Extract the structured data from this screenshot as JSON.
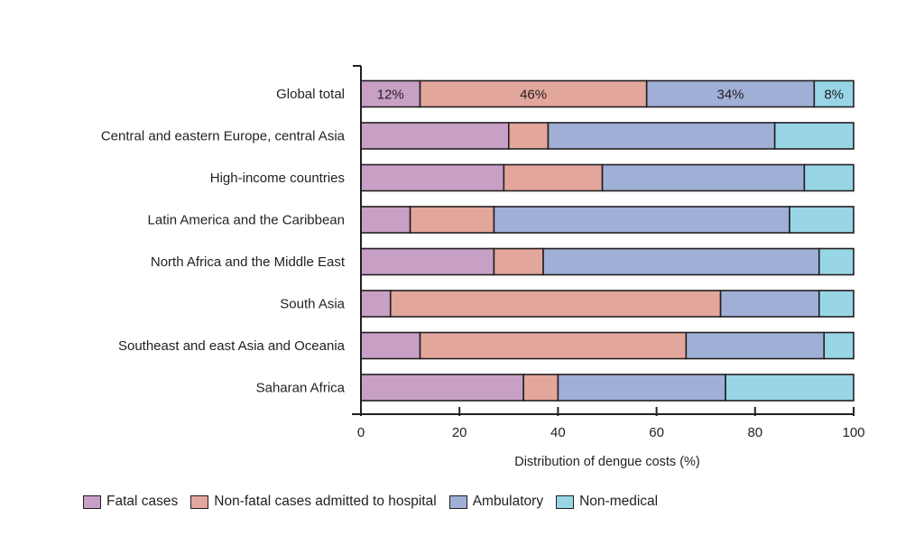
{
  "chart_data": {
    "type": "bar",
    "orientation": "horizontal",
    "stacked": true,
    "title": "",
    "xlabel": "Distribution of dengue costs (%)",
    "ylabel": "",
    "xlim": [
      0,
      100
    ],
    "xticks": [
      0,
      20,
      40,
      60,
      80,
      100
    ],
    "grid": false,
    "legend_position": "bottom-left",
    "categories": [
      "Global total",
      "Central and eastern Europe, central Asia",
      "High-income countries",
      "Latin America and the Caribbean",
      "North Africa and the Middle East",
      "South Asia",
      "Southeast and east Asia and Oceania",
      "Saharan Africa"
    ],
    "series": [
      {
        "name": "Fatal cases",
        "color": "#c8a0c6",
        "values": [
          12,
          30,
          29,
          10,
          27,
          6,
          12,
          33
        ]
      },
      {
        "name": "Non-fatal cases admitted to hospital",
        "color": "#e3a69c",
        "values": [
          46,
          8,
          20,
          17,
          10,
          67,
          54,
          7
        ]
      },
      {
        "name": "Ambulatory",
        "color": "#9fafd6",
        "values": [
          34,
          46,
          41,
          60,
          56,
          20,
          28,
          34
        ]
      },
      {
        "name": "Non-medical",
        "color": "#98d6e6",
        "values": [
          8,
          16,
          10,
          13,
          7,
          7,
          6,
          26
        ]
      }
    ],
    "data_labels": [
      {
        "category": "Global total",
        "series": "Fatal cases",
        "text": "12%"
      },
      {
        "category": "Global total",
        "series": "Non-fatal cases admitted to hospital",
        "text": "46%"
      },
      {
        "category": "Global total",
        "series": "Ambulatory",
        "text": "34%"
      },
      {
        "category": "Global total",
        "series": "Non-medical",
        "text": "8%"
      }
    ]
  }
}
